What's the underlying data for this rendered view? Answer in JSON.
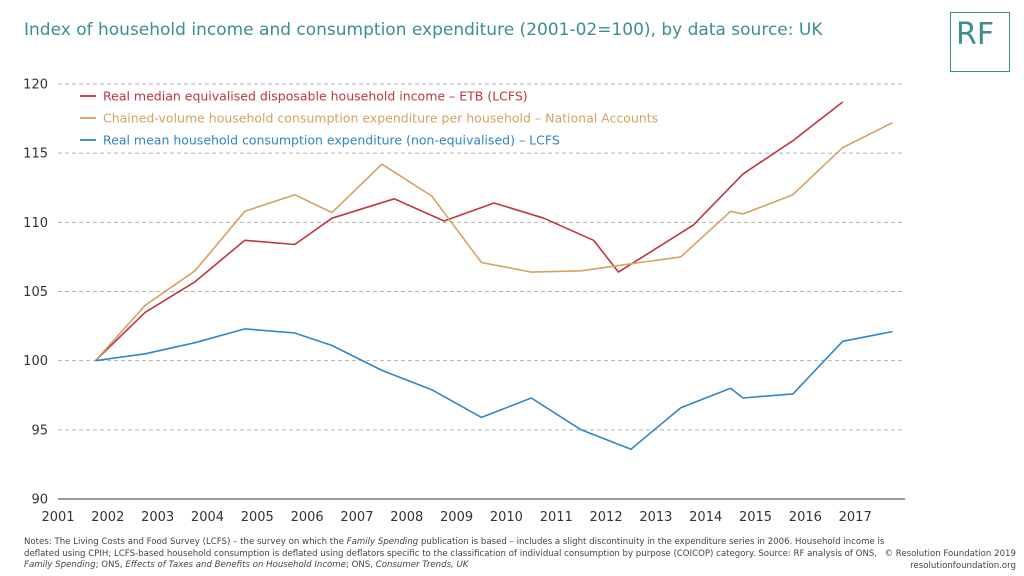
{
  "title": "Index of household income and consumption expenditure (2001-02=100), by data source: UK",
  "logo": "RF",
  "notes": {
    "p1": "Notes: The Living Costs and Food Survey (LCFS) – the survey on which the ",
    "i1": "Family Spending",
    "p2": " publication is based – includes a slight discontinuity in the expenditure series in 2006. Household income is deflated using CPIH; LCFS-based household consumption is deflated using deflators specific to the classification of individual consumption by purpose (COICOP) category. Source: RF analysis of ONS, ",
    "i2": "Family Spending",
    "p3": "; ONS, ",
    "i3": "Effects of Taxes and Benefits on Household Income",
    "p4": "; ONS, ",
    "i4": "Consumer Trends, UK"
  },
  "copyright": {
    "line1": "© Resolution Foundation 2019",
    "line2": "resolutionfoundation.org"
  },
  "colors": {
    "title": "#3a8f90",
    "red": "#c0353f",
    "gold": "#d4a35f",
    "blue": "#2f86c8",
    "grid": "#b5b5b5"
  },
  "chart_data": {
    "type": "line",
    "title": "Index of household income and consumption expenditure (2001-02=100), by data source: UK",
    "xlabel": "",
    "ylabel": "",
    "xlim": [
      2001,
      2018
    ],
    "ylim": [
      90,
      120
    ],
    "yticks": [
      90,
      95,
      100,
      105,
      110,
      115,
      120
    ],
    "xticks": [
      "2001",
      "2002",
      "2003",
      "2004",
      "2005",
      "2006",
      "2007",
      "2008",
      "2009",
      "2010",
      "2011",
      "2012",
      "2013",
      "2014",
      "2015",
      "2016",
      "2017"
    ],
    "grid": "horizontal dashed",
    "legend_position": "top-left",
    "series": [
      {
        "name": "Real median equivalised disposable household income – ETB (LCFS)",
        "color": "#c0353f",
        "points": [
          [
            2001.75,
            100.0
          ],
          [
            2002.75,
            103.5
          ],
          [
            2003.75,
            105.7
          ],
          [
            2004.75,
            108.7
          ],
          [
            2005.75,
            108.4
          ],
          [
            2006.5,
            110.3
          ],
          [
            2007.75,
            111.7
          ],
          [
            2008.75,
            110.1
          ],
          [
            2009.75,
            111.4
          ],
          [
            2010.75,
            110.3
          ],
          [
            2011.75,
            108.7
          ],
          [
            2012.25,
            106.4
          ],
          [
            2013.75,
            109.8
          ],
          [
            2014.75,
            113.5
          ],
          [
            2015.75,
            115.9
          ],
          [
            2016.75,
            118.7
          ]
        ]
      },
      {
        "name": "Chained-volume household consumption expenditure per household – National Accounts",
        "color": "#d4a35f",
        "points": [
          [
            2001.75,
            100.0
          ],
          [
            2002.75,
            104.0
          ],
          [
            2003.75,
            106.5
          ],
          [
            2004.75,
            110.8
          ],
          [
            2005.75,
            112.0
          ],
          [
            2006.5,
            110.7
          ],
          [
            2007.5,
            114.2
          ],
          [
            2008.5,
            111.9
          ],
          [
            2009.5,
            107.1
          ],
          [
            2010.5,
            106.4
          ],
          [
            2011.5,
            106.5
          ],
          [
            2012.5,
            107.0
          ],
          [
            2013.5,
            107.5
          ],
          [
            2014.5,
            110.8
          ],
          [
            2014.75,
            110.6
          ],
          [
            2015.75,
            112.0
          ],
          [
            2016.75,
            115.4
          ],
          [
            2017.75,
            117.2
          ]
        ]
      },
      {
        "name": "Real mean household consumption expenditure (non-equivalised) – LCFS",
        "color": "#2f86c8",
        "points": [
          [
            2001.75,
            100.0
          ],
          [
            2002.75,
            100.5
          ],
          [
            2003.75,
            101.3
          ],
          [
            2004.75,
            102.3
          ],
          [
            2005.75,
            102.0
          ],
          [
            2006.5,
            101.1
          ],
          [
            2007.5,
            99.3
          ],
          [
            2008.5,
            97.9
          ],
          [
            2009.5,
            95.9
          ],
          [
            2010.5,
            97.3
          ],
          [
            2011.5,
            95.0
          ],
          [
            2012.5,
            93.6
          ],
          [
            2013.5,
            96.6
          ],
          [
            2014.5,
            98.0
          ],
          [
            2014.75,
            97.3
          ],
          [
            2015.75,
            97.6
          ],
          [
            2016.75,
            101.4
          ],
          [
            2017.75,
            102.1
          ]
        ]
      }
    ]
  }
}
